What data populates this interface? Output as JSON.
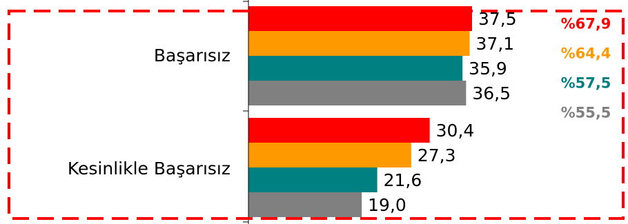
{
  "chart_data": {
    "type": "bar",
    "orientation": "horizontal",
    "categories": [
      "Başarısız",
      "Kesinlikle Başarısız"
    ],
    "series": [
      {
        "color": "#ff0000",
        "values": [
          37.5,
          30.4
        ],
        "labels": [
          "37,5",
          "30,4"
        ]
      },
      {
        "color": "#ff9900",
        "values": [
          37.1,
          27.3
        ],
        "labels": [
          "37,1",
          "27,3"
        ]
      },
      {
        "color": "#008080",
        "values": [
          35.9,
          21.6
        ],
        "labels": [
          "35,9",
          "21,6"
        ]
      },
      {
        "color": "#808080",
        "values": [
          36.5,
          19.0
        ],
        "labels": [
          "36,5",
          "19,0"
        ]
      }
    ],
    "xlim": [
      0,
      60
    ],
    "grid": false,
    "totals": [
      {
        "label": "%67,9",
        "color": "#ff0000"
      },
      {
        "label": "%64,4",
        "color": "#ff9900"
      },
      {
        "label": "%57,5",
        "color": "#008080"
      },
      {
        "label": "%55,5",
        "color": "#808080"
      }
    ],
    "highlight_frame_color": "#ff0000"
  }
}
